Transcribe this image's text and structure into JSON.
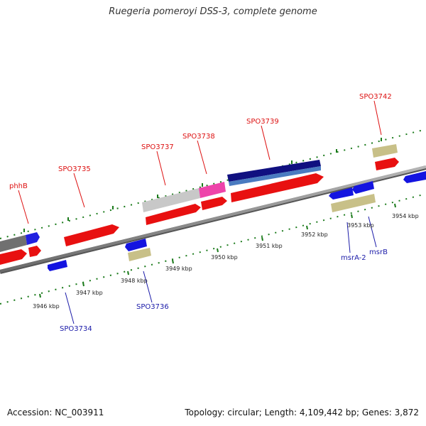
{
  "title": "Ruegeria pomeroyi DSS-3, complete genome",
  "footer": {
    "accession": "Accession: NC_003911",
    "stats": "Topology: circular; Length: 4,109,442 bp; Genes: 3,872"
  },
  "kbp_labels": [
    "3946 kbp",
    "3947 kbp",
    "3948 kbp",
    "3949 kbp",
    "3950 kbp",
    "3951 kbp",
    "3952 kbp",
    "3953 kbp",
    "3954 kbp"
  ],
  "gene_labels": {
    "phhB": "phhB",
    "SPO3735": "SPO3735",
    "SPO3737": "SPO3737",
    "SPO3738": "SPO3738",
    "SPO3739": "SPO3739",
    "SPO3742": "SPO3742",
    "SPO3734": "SPO3734",
    "SPO3736": "SPO3736",
    "msrA2": "msrA-2",
    "msrB": "msrB"
  },
  "colors": {
    "forward_cds": "#e81010",
    "reverse_cds": "#1414e0",
    "trna_like": "#c8c088",
    "backbone": "#888888",
    "tick": "#1a7a1a"
  }
}
